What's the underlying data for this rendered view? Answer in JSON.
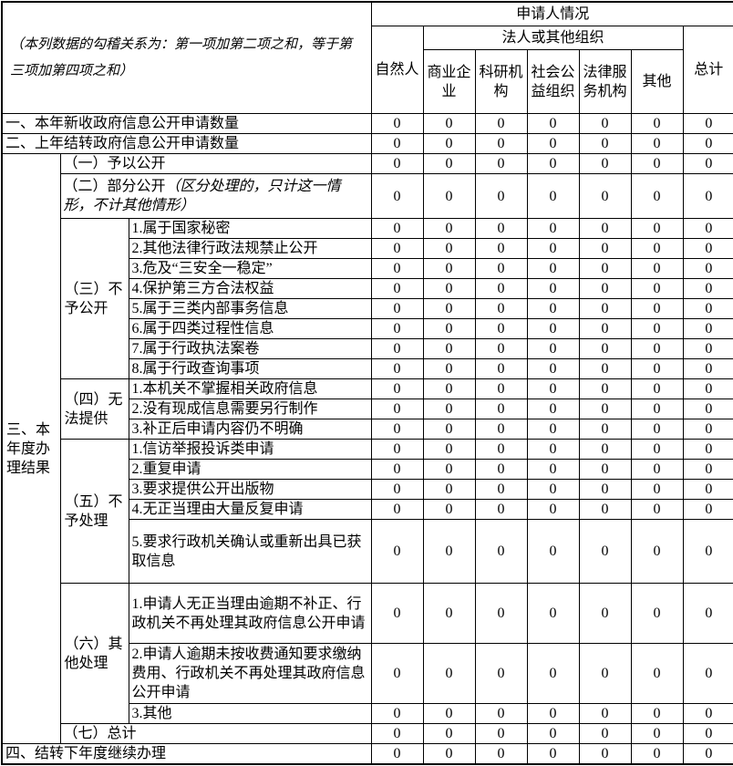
{
  "note": "（本列数据的勾稽关系为：第一项加第二项之和，等于第三项加第四项之和）",
  "header": {
    "applicant_title": "申请人情况",
    "legal_org_title": "法人或其他组织",
    "columns": [
      "自然人",
      "商业企业",
      "科研机构",
      "社会公益组织",
      "法律服务机构",
      "其他",
      "总计"
    ]
  },
  "sections": {
    "annual_results": "三、本年度办理结果",
    "not_disclosed": "（三）不予公开",
    "unable_provide": "（四）无法提供",
    "not_processed": "（五）不予处理",
    "other_handling": "（六）其他处理"
  },
  "rows": [
    {
      "label": "一、本年新收政府信息公开申请数量",
      "values": [
        "0",
        "0",
        "0",
        "0",
        "0",
        "0",
        "0"
      ]
    },
    {
      "label": "二、上年结转政府信息公开申请数量",
      "values": [
        "0",
        "0",
        "0",
        "0",
        "0",
        "0",
        "0"
      ]
    },
    {
      "label": "（一）予以公开",
      "values": [
        "0",
        "0",
        "0",
        "0",
        "0",
        "0",
        "0"
      ]
    },
    {
      "label": "（二）部分公开",
      "label_note": "（区分处理的，只计这一情形，不计其他情形）",
      "values": [
        "0",
        "0",
        "0",
        "0",
        "0",
        "0",
        "0"
      ]
    },
    {
      "label": "1.属于国家秘密",
      "values": [
        "0",
        "0",
        "0",
        "0",
        "0",
        "0",
        "0"
      ]
    },
    {
      "label": "2.其他法律行政法规禁止公开",
      "values": [
        "0",
        "0",
        "0",
        "0",
        "0",
        "0",
        "0"
      ]
    },
    {
      "label": "3.危及“三安全一稳定”",
      "values": [
        "0",
        "0",
        "0",
        "0",
        "0",
        "0",
        "0"
      ]
    },
    {
      "label": "4.保护第三方合法权益",
      "values": [
        "0",
        "0",
        "0",
        "0",
        "0",
        "0",
        "0"
      ]
    },
    {
      "label": "5.属于三类内部事务信息",
      "values": [
        "0",
        "0",
        "0",
        "0",
        "0",
        "0",
        "0"
      ]
    },
    {
      "label": "6.属于四类过程性信息",
      "values": [
        "0",
        "0",
        "0",
        "0",
        "0",
        "0",
        "0"
      ]
    },
    {
      "label": "7.属于行政执法案卷",
      "values": [
        "0",
        "0",
        "0",
        "0",
        "0",
        "0",
        "0"
      ]
    },
    {
      "label": "8.属于行政查询事项",
      "values": [
        "0",
        "0",
        "0",
        "0",
        "0",
        "0",
        "0"
      ]
    },
    {
      "label": "1.本机关不掌握相关政府信息",
      "values": [
        "0",
        "0",
        "0",
        "0",
        "0",
        "0",
        "0"
      ]
    },
    {
      "label": "2.没有现成信息需要另行制作",
      "values": [
        "0",
        "0",
        "0",
        "0",
        "0",
        "0",
        "0"
      ]
    },
    {
      "label": "3.补正后申请内容仍不明确",
      "values": [
        "0",
        "0",
        "0",
        "0",
        "0",
        "0",
        "0"
      ]
    },
    {
      "label": "1.信访举报投诉类申请",
      "values": [
        "0",
        "0",
        "0",
        "0",
        "0",
        "0",
        "0"
      ]
    },
    {
      "label": "2.重复申请",
      "values": [
        "0",
        "0",
        "0",
        "0",
        "0",
        "0",
        "0"
      ]
    },
    {
      "label": "3.要求提供公开出版物",
      "values": [
        "0",
        "0",
        "0",
        "0",
        "0",
        "0",
        "0"
      ]
    },
    {
      "label": "4.无正当理由大量反复申请",
      "values": [
        "0",
        "0",
        "0",
        "0",
        "0",
        "0",
        "0"
      ]
    },
    {
      "label": "5.要求行政机关确认或重新出具已获取信息",
      "values": [
        "0",
        "0",
        "0",
        "0",
        "0",
        "0",
        "0"
      ]
    },
    {
      "label": "1.申请人无正当理由逾期不补正、行政机关不再处理其政府信息公开申请",
      "values": [
        "0",
        "0",
        "0",
        "0",
        "0",
        "0",
        "0"
      ]
    },
    {
      "label": "2.申请人逾期未按收费通知要求缴纳费用、行政机关不再处理其政府信息公开申请",
      "values": [
        "0",
        "0",
        "0",
        "0",
        "0",
        "0",
        "0"
      ]
    },
    {
      "label": "3.其他",
      "values": [
        "0",
        "0",
        "0",
        "0",
        "0",
        "0",
        "0"
      ]
    },
    {
      "label": "（七）总计",
      "values": [
        "0",
        "0",
        "0",
        "0",
        "0",
        "0",
        "0"
      ]
    },
    {
      "label": "四、结转下年度继续办理",
      "values": [
        "0",
        "0",
        "0",
        "0",
        "0",
        "0",
        "0"
      ]
    }
  ]
}
